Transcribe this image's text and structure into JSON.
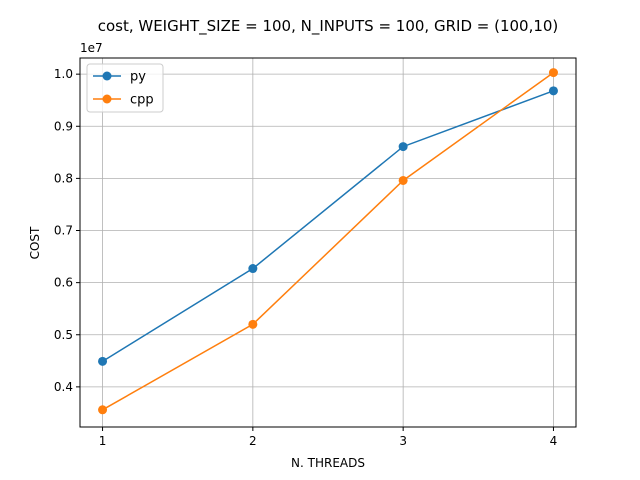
{
  "chart_data": {
    "type": "line",
    "title": "cost, WEIGHT_SIZE = 100, N_INPUTS = 100, GRID = (100,10)",
    "xlabel": "N. THREADS",
    "ylabel": "COST",
    "y_offset_label": "1e7",
    "x": [
      1,
      2,
      3,
      4
    ],
    "xticks": [
      "1",
      "2",
      "3",
      "4"
    ],
    "yticks": [
      "0.4",
      "0.5",
      "0.6",
      "0.7",
      "0.8",
      "0.9",
      "1.0"
    ],
    "ytick_values": [
      0.4,
      0.5,
      0.6,
      0.7,
      0.8,
      0.9,
      1.0
    ],
    "xlim": [
      0.85,
      4.15
    ],
    "ylim": [
      0.323,
      1.031
    ],
    "grid": true,
    "legend_position": "top-left",
    "series": [
      {
        "name": "py",
        "color": "#1f77b4",
        "values": [
          0.449,
          0.627,
          0.861,
          0.968
        ]
      },
      {
        "name": "cpp",
        "color": "#ff7f0e",
        "values": [
          0.356,
          0.52,
          0.796,
          1.003
        ]
      }
    ]
  }
}
